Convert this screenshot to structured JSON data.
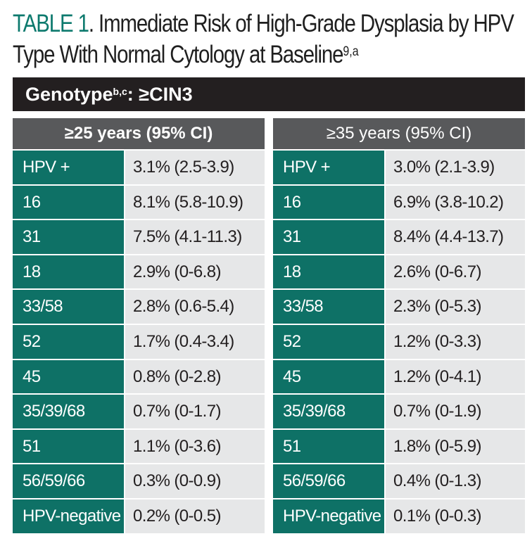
{
  "title": {
    "label": "TABLE 1",
    "text": ". Immediate Risk of High-Grade Dysplasia by HPV Type With Normal Cytology at Baseline",
    "superscript": "9,a"
  },
  "genotype_bar": {
    "label": "Genotype",
    "superscript": "b,c",
    "suffix": ": ≥CIN3"
  },
  "tables": [
    {
      "header": "≥25 years (95% CI)",
      "rows": [
        {
          "type": "HPV +",
          "value": "3.1% (2.5-3.9)"
        },
        {
          "type": "16",
          "value": "8.1% (5.8-10.9)"
        },
        {
          "type": "31",
          "value": "7.5% (4.1-11.3)"
        },
        {
          "type": "18",
          "value": "2.9% (0-6.8)"
        },
        {
          "type": "33/58",
          "value": "2.8% (0.6-5.4)"
        },
        {
          "type": "52",
          "value": "1.7% (0.4-3.4)"
        },
        {
          "type": "45",
          "value": "0.8% (0-2.8)"
        },
        {
          "type": "35/39/68",
          "value": "0.7% (0-1.7)"
        },
        {
          "type": "51",
          "value": "1.1% (0-3.6)"
        },
        {
          "type": "56/59/66",
          "value": "0.3% (0-0.9)"
        },
        {
          "type": "HPV-negative",
          "value": "0.2% (0-0.5)"
        }
      ]
    },
    {
      "header": "≥35 years (95% CI)",
      "rows": [
        {
          "type": "HPV +",
          "value": "3.0% (2.1-3.9)"
        },
        {
          "type": "16",
          "value": "6.9% (3.8-10.2)"
        },
        {
          "type": "31",
          "value": "8.4% (4.4-13.7)"
        },
        {
          "type": "18",
          "value": "2.6% (0-6.7)"
        },
        {
          "type": "33/58",
          "value": "2.3% (0-5.3)"
        },
        {
          "type": "52",
          "value": "1.2% (0-3.3)"
        },
        {
          "type": "45",
          "value": "1.2% (0-4.1)"
        },
        {
          "type": "35/39/68",
          "value": "0.7% (0-1.9)"
        },
        {
          "type": "51",
          "value": "1.8% (0-5.9)"
        },
        {
          "type": "56/59/66",
          "value": "0.4% (0-1.3)"
        },
        {
          "type": "HPV-negative",
          "value": "0.1% (0-0.3)"
        }
      ]
    }
  ]
}
